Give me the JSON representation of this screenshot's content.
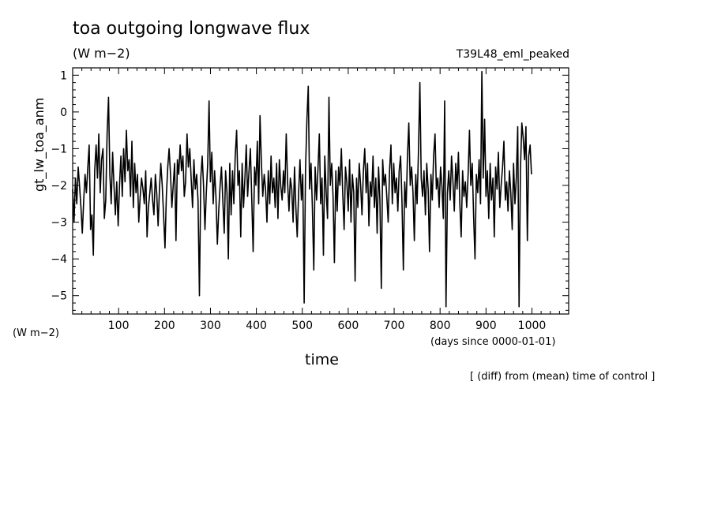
{
  "chart_data": {
    "type": "line",
    "title": "toa outgoing longwave flux",
    "units": "(W m−2)",
    "run_label": "T39L48_eml_peaked",
    "ylabel": "gt_lw_toa_anm",
    "y_units": "(W m−2)",
    "xlabel": "time",
    "x_units": "(days since 0000-01-01)",
    "note": "[ (diff) from (mean) time of control ]",
    "xlim": [
      0,
      1080
    ],
    "ylim": [
      -5.5,
      1.2
    ],
    "x_ticks": [
      100,
      200,
      300,
      400,
      500,
      600,
      700,
      800,
      900,
      1000
    ],
    "y_ticks": [
      1,
      0,
      -1,
      -2,
      -3,
      -4,
      -5
    ],
    "grid": false,
    "series": [
      {
        "x_start": 0,
        "x_step": 3,
        "values": [
          -2.1,
          -3.0,
          -1.8,
          -2.5,
          -1.5,
          -2.0,
          -2.6,
          -3.3,
          -2.4,
          -1.7,
          -2.2,
          -1.5,
          -0.9,
          -3.2,
          -2.8,
          -3.9,
          -1.6,
          -0.9,
          -1.8,
          -0.6,
          -2.2,
          -1.3,
          -1.0,
          -2.9,
          -2.4,
          -0.6,
          0.4,
          -1.7,
          -2.5,
          -1.1,
          -2.0,
          -2.8,
          -1.9,
          -3.1,
          -2.0,
          -1.2,
          -2.3,
          -1.0,
          -1.9,
          -0.5,
          -1.6,
          -1.3,
          -2.3,
          -0.8,
          -2.6,
          -1.4,
          -2.2,
          -1.7,
          -3.0,
          -2.3,
          -1.8,
          -2.1,
          -2.5,
          -1.6,
          -3.4,
          -2.6,
          -2.2,
          -1.8,
          -2.4,
          -2.8,
          -1.7,
          -2.2,
          -3.1,
          -2.1,
          -1.4,
          -2.0,
          -2.8,
          -3.7,
          -2.3,
          -1.5,
          -1.0,
          -1.7,
          -2.6,
          -2.0,
          -1.4,
          -3.5,
          -1.3,
          -1.7,
          -0.9,
          -1.6,
          -1.2,
          -2.3,
          -1.9,
          -0.6,
          -1.5,
          -1.0,
          -1.8,
          -2.6,
          -1.3,
          -2.1,
          -1.7,
          -2.4,
          -5.0,
          -1.8,
          -1.2,
          -2.0,
          -3.2,
          -2.2,
          -1.4,
          0.3,
          -1.9,
          -1.1,
          -2.5,
          -1.6,
          -2.3,
          -3.6,
          -2.7,
          -2.0,
          -1.5,
          -2.4,
          -3.3,
          -1.6,
          -2.2,
          -4.0,
          -1.4,
          -2.8,
          -1.6,
          -2.5,
          -1.2,
          -0.5,
          -2.0,
          -1.6,
          -3.4,
          -1.4,
          -2.6,
          -1.8,
          -0.9,
          -2.3,
          -1.6,
          -1.0,
          -2.4,
          -3.8,
          -1.5,
          -2.0,
          -0.8,
          -2.5,
          -0.1,
          -1.4,
          -2.3,
          -1.7,
          -2.1,
          -3.0,
          -1.6,
          -2.5,
          -1.2,
          -2.2,
          -1.8,
          -2.6,
          -1.4,
          -2.9,
          -1.3,
          -2.0,
          -2.4,
          -1.6,
          -2.2,
          -0.6,
          -1.9,
          -2.7,
          -1.8,
          -2.1,
          -3.0,
          -1.5,
          -2.6,
          -3.4,
          -2.2,
          -1.3,
          -2.4,
          -1.7,
          -5.2,
          -1.6,
          -0.2,
          0.7,
          -2.1,
          -1.4,
          -2.6,
          -4.3,
          -1.5,
          -2.4,
          -1.6,
          -0.6,
          -2.5,
          -1.8,
          -3.9,
          -1.2,
          -2.2,
          -2.9,
          0.4,
          -2.0,
          -1.4,
          -2.3,
          -4.1,
          -1.6,
          -2.7,
          -1.5,
          -2.0,
          -1.0,
          -2.2,
          -3.2,
          -1.5,
          -1.9,
          -2.7,
          -1.3,
          -3.0,
          -1.7,
          -2.2,
          -4.6,
          -1.8,
          -2.6,
          -1.4,
          -2.0,
          -2.8,
          -1.6,
          -1.0,
          -2.2,
          -1.4,
          -3.1,
          -1.9,
          -2.3,
          -1.2,
          -2.6,
          -1.8,
          -3.3,
          -1.5,
          -2.4,
          -4.8,
          -1.3,
          -2.0,
          -1.7,
          -2.3,
          -3.0,
          -1.6,
          -0.9,
          -2.5,
          -1.4,
          -2.2,
          -1.8,
          -2.7,
          -1.6,
          -1.2,
          -2.4,
          -4.3,
          -1.9,
          -2.6,
          -1.2,
          -0.3,
          -2.0,
          -1.5,
          -2.2,
          -3.5,
          -1.7,
          -2.5,
          -1.0,
          0.8,
          -1.8,
          -2.3,
          -1.6,
          -2.8,
          -1.4,
          -2.1,
          -3.8,
          -1.7,
          -2.4,
          -1.2,
          -0.6,
          -2.1,
          -1.8,
          -2.6,
          -1.5,
          -2.0,
          -2.9,
          0.3,
          -5.3,
          -2.2,
          -1.6,
          -2.4,
          -1.2,
          -1.9,
          -2.7,
          -1.4,
          -2.1,
          -1.1,
          -2.5,
          -3.4,
          -1.6,
          -2.3,
          -1.9,
          -2.6,
          -1.7,
          -0.5,
          -2.0,
          -1.4,
          -2.8,
          -4.0,
          -1.7,
          -2.2,
          -1.3,
          -2.5,
          1.1,
          -1.8,
          -0.2,
          -2.3,
          -1.6,
          -2.9,
          -1.4,
          -2.4,
          -1.8,
          -3.4,
          -1.5,
          -2.1,
          -1.1,
          -2.6,
          -2.0,
          -1.5,
          -0.8,
          -2.4,
          -1.9,
          -2.7,
          -1.6,
          -2.2,
          -3.2,
          -1.4,
          -2.5,
          -1.8,
          -0.4,
          -5.3,
          -1.6,
          -0.3,
          -0.7,
          -1.3,
          -0.4,
          -3.5,
          -1.2,
          -0.9,
          -1.7
        ]
      }
    ]
  }
}
